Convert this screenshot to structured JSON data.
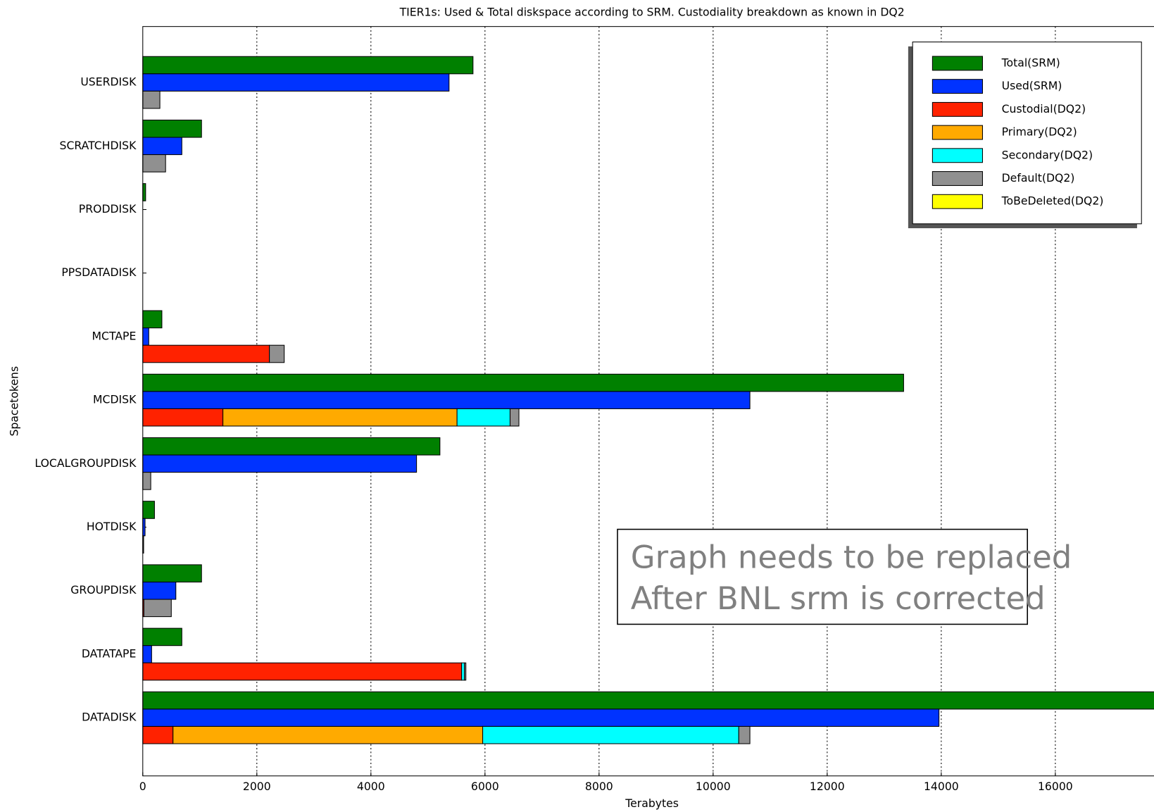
{
  "chart_data": {
    "type": "bar",
    "orientation": "horizontal",
    "title": "TIER1s: Used & Total diskspace according to SRM. Custodiality breakdown as known in DQ2",
    "x_label": "Terabytes",
    "y_label": "Spacetokens",
    "categories": [
      "USERDISK",
      "SCRATCHDISK",
      "PRODDISK",
      "PPSDATADISK",
      "MCTAPE",
      "MCDISK",
      "LOCALGROUPDISK",
      "HOTDISK",
      "GROUPDISK",
      "DATATAPE",
      "DATADISK"
    ],
    "series": [
      {
        "name": "Total(SRM)",
        "color": "#008000",
        "values": [
          5790,
          1030,
          50,
          0,
          335,
          13340,
          5210,
          205,
          1030,
          685,
          18000
        ]
      },
      {
        "name": "Used(SRM)",
        "color": "#0033ff",
        "values": [
          5370,
          685,
          0,
          0,
          105,
          10645,
          4800,
          40,
          580,
          155,
          13960
        ]
      },
      {
        "name": "Custodial(DQ2)",
        "color": "#ff2200",
        "values": [
          0,
          0,
          0,
          0,
          2220,
          1405,
          0,
          0,
          20,
          5590,
          530
        ]
      },
      {
        "name": "Primary(DQ2)",
        "color": "#ffaa00",
        "values": [
          0,
          0,
          0,
          0,
          0,
          4105,
          0,
          0,
          0,
          0,
          5430
        ]
      },
      {
        "name": "Secondary(DQ2)",
        "color": "#00ffff",
        "values": [
          0,
          0,
          0,
          0,
          0,
          930,
          0,
          0,
          0,
          50,
          4490
        ]
      },
      {
        "name": "Default(DQ2)",
        "color": "#909090",
        "values": [
          300,
          400,
          0,
          0,
          260,
          155,
          140,
          15,
          480,
          25,
          195
        ]
      },
      {
        "name": "ToBeDeleted(DQ2)",
        "color": "#ffff00",
        "values": [
          0,
          0,
          0,
          0,
          0,
          0,
          0,
          0,
          0,
          0,
          0
        ]
      }
    ],
    "xlim": [
      0,
      17730
    ],
    "xticks": [
      0,
      2000,
      4000,
      6000,
      8000,
      10000,
      12000,
      14000,
      16000
    ],
    "grid": true,
    "legend": "upper right",
    "annotation": [
      "Graph needs to be replaced",
      "After BNL srm is corrected"
    ]
  }
}
